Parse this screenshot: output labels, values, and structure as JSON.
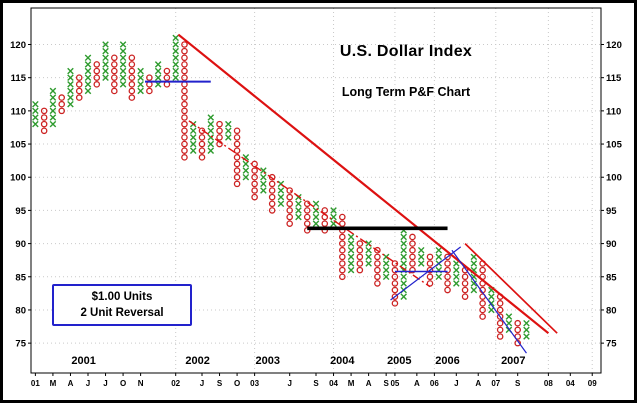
{
  "header": {
    "title": "U.S. Dollar Index",
    "subtitle": "Long Term P&F Chart"
  },
  "note": {
    "line1": "$1.00 Units",
    "line2": "2 Unit Reversal"
  },
  "chart_data": {
    "type": "point-and-figure",
    "title": "U.S. Dollar Index",
    "subtitle": "Long Term P&F Chart",
    "box_size": 1.0,
    "reversal": 2,
    "ylim": [
      70.5,
      125.5
    ],
    "yticks": [
      75,
      80,
      85,
      90,
      95,
      100,
      105,
      110,
      115,
      120
    ],
    "total_cols": 65,
    "grid": true,
    "colors": {
      "x_marker": "#2e9b2e",
      "o_marker": "#cc2222",
      "trend_red": "#dd1111",
      "trend_blue": "#2222cc",
      "resistance_black": "#000000",
      "grid": "#c9c9c9",
      "frame": "#000000"
    },
    "x_labels": [
      {
        "label": "01",
        "col": 0
      },
      {
        "label": "M",
        "col": 2
      },
      {
        "label": "A",
        "col": 4
      },
      {
        "label": "J",
        "col": 6
      },
      {
        "label": "J",
        "col": 8
      },
      {
        "label": "O",
        "col": 10
      },
      {
        "label": "N",
        "col": 12
      },
      {
        "label": "02",
        "col": 16
      },
      {
        "label": "J",
        "col": 19
      },
      {
        "label": "S",
        "col": 21
      },
      {
        "label": "O",
        "col": 23
      },
      {
        "label": "03",
        "col": 25
      },
      {
        "label": "J",
        "col": 29
      },
      {
        "label": "S",
        "col": 32
      },
      {
        "label": "04",
        "col": 34
      },
      {
        "label": "M",
        "col": 36
      },
      {
        "label": "A",
        "col": 38
      },
      {
        "label": "S",
        "col": 40
      },
      {
        "label": "05",
        "col": 41
      },
      {
        "label": "A",
        "col": 43.5
      },
      {
        "label": "06",
        "col": 45.5
      },
      {
        "label": "J",
        "col": 48
      },
      {
        "label": "A",
        "col": 50.5
      },
      {
        "label": "07",
        "col": 52.5
      },
      {
        "label": "S",
        "col": 55
      },
      {
        "label": "08",
        "col": 58.5
      },
      {
        "label": "04",
        "col": 61
      },
      {
        "label": "09",
        "col": 63.5
      }
    ],
    "year_grid_cols": [
      16,
      25,
      34,
      41,
      45.5,
      52.5,
      58.5,
      63.5
    ],
    "year_labels": [
      {
        "label": "2001",
        "col": 5.5
      },
      {
        "label": "2002",
        "col": 18.5
      },
      {
        "label": "2003",
        "col": 26.5
      },
      {
        "label": "2004",
        "col": 35
      },
      {
        "label": "2005",
        "col": 41.5
      },
      {
        "label": "2006",
        "col": 47
      },
      {
        "label": "2007",
        "col": 54.5
      }
    ],
    "columns": [
      {
        "t": "X",
        "lo": 108,
        "hi": 111
      },
      {
        "t": "O",
        "lo": 107,
        "hi": 110
      },
      {
        "t": "X",
        "lo": 108,
        "hi": 113
      },
      {
        "t": "O",
        "lo": 110,
        "hi": 112
      },
      {
        "t": "X",
        "lo": 111,
        "hi": 116
      },
      {
        "t": "O",
        "lo": 112,
        "hi": 115
      },
      {
        "t": "X",
        "lo": 113,
        "hi": 118
      },
      {
        "t": "O",
        "lo": 114,
        "hi": 117
      },
      {
        "t": "X",
        "lo": 115,
        "hi": 120
      },
      {
        "t": "O",
        "lo": 113,
        "hi": 118
      },
      {
        "t": "X",
        "lo": 114,
        "hi": 120
      },
      {
        "t": "O",
        "lo": 112,
        "hi": 118
      },
      {
        "t": "X",
        "lo": 113,
        "hi": 116
      },
      {
        "t": "O",
        "lo": 113,
        "hi": 115
      },
      {
        "t": "X",
        "lo": 114,
        "hi": 117
      },
      {
        "t": "O",
        "lo": 114,
        "hi": 116
      },
      {
        "t": "X",
        "lo": 115,
        "hi": 121
      },
      {
        "t": "O",
        "lo": 103,
        "hi": 120
      },
      {
        "t": "X",
        "lo": 104,
        "hi": 108
      },
      {
        "t": "O",
        "lo": 103,
        "hi": 107
      },
      {
        "t": "X",
        "lo": 104,
        "hi": 109
      },
      {
        "t": "O",
        "lo": 105,
        "hi": 108
      },
      {
        "t": "X",
        "lo": 106,
        "hi": 108
      },
      {
        "t": "O",
        "lo": 99,
        "hi": 107
      },
      {
        "t": "X",
        "lo": 100,
        "hi": 103
      },
      {
        "t": "O",
        "lo": 97,
        "hi": 102
      },
      {
        "t": "X",
        "lo": 98,
        "hi": 101
      },
      {
        "t": "O",
        "lo": 95,
        "hi": 100
      },
      {
        "t": "X",
        "lo": 96,
        "hi": 99
      },
      {
        "t": "O",
        "lo": 93,
        "hi": 98
      },
      {
        "t": "X",
        "lo": 94,
        "hi": 97
      },
      {
        "t": "O",
        "lo": 92,
        "hi": 96
      },
      {
        "t": "X",
        "lo": 93,
        "hi": 96
      },
      {
        "t": "O",
        "lo": 92,
        "hi": 95
      },
      {
        "t": "X",
        "lo": 93,
        "hi": 95
      },
      {
        "t": "O",
        "lo": 85,
        "hi": 94
      },
      {
        "t": "X",
        "lo": 86,
        "hi": 91
      },
      {
        "t": "O",
        "lo": 86,
        "hi": 90
      },
      {
        "t": "X",
        "lo": 87,
        "hi": 90
      },
      {
        "t": "O",
        "lo": 84,
        "hi": 89
      },
      {
        "t": "X",
        "lo": 85,
        "hi": 88
      },
      {
        "t": "O",
        "lo": 81,
        "hi": 87
      },
      {
        "t": "X",
        "lo": 82,
        "hi": 92
      },
      {
        "t": "O",
        "lo": 86,
        "hi": 91
      },
      {
        "t": "X",
        "lo": 87,
        "hi": 89
      },
      {
        "t": "O",
        "lo": 84,
        "hi": 88
      },
      {
        "t": "X",
        "lo": 85,
        "hi": 89
      },
      {
        "t": "O",
        "lo": 83,
        "hi": 88
      },
      {
        "t": "X",
        "lo": 84,
        "hi": 87
      },
      {
        "t": "O",
        "lo": 82,
        "hi": 86
      },
      {
        "t": "X",
        "lo": 83,
        "hi": 88
      },
      {
        "t": "O",
        "lo": 79,
        "hi": 87
      },
      {
        "t": "X",
        "lo": 80,
        "hi": 83
      },
      {
        "t": "O",
        "lo": 76,
        "hi": 82
      },
      {
        "t": "X",
        "lo": 77,
        "hi": 79
      },
      {
        "t": "O",
        "lo": 75,
        "hi": 78
      },
      {
        "t": "X",
        "lo": 76,
        "hi": 78
      }
    ],
    "lines": [
      {
        "name": "primary-downtrend",
        "x1": 16.3,
        "y1": 121.5,
        "x2": 58.5,
        "y2": 76.5,
        "color": "#dd1111",
        "width": 2.2,
        "style": "solid"
      },
      {
        "name": "secondary-downtrend-dashed",
        "x1": 17.5,
        "y1": 108.5,
        "x2": 45,
        "y2": 83.5,
        "color": "#dd1111",
        "width": 1.4,
        "style": "dash"
      },
      {
        "name": "right-downtrend",
        "x1": 49,
        "y1": 90,
        "x2": 59.5,
        "y2": 76.5,
        "color": "#dd1111",
        "width": 1.7,
        "style": "solid"
      },
      {
        "name": "resistance-92",
        "x1": 31,
        "y1": 92.3,
        "x2": 47,
        "y2": 92.3,
        "color": "#000000",
        "width": 3.6,
        "style": "solid"
      },
      {
        "name": "blue-support-114",
        "x1": 12.5,
        "y1": 114.4,
        "x2": 20,
        "y2": 114.4,
        "color": "#2222cc",
        "width": 2.0,
        "style": "solid"
      },
      {
        "name": "blue-support-86",
        "x1": 41,
        "y1": 85.8,
        "x2": 47,
        "y2": 85.8,
        "color": "#2222cc",
        "width": 1.5,
        "style": "solid"
      },
      {
        "name": "blue-uptrend",
        "x1": 40.5,
        "y1": 81.5,
        "x2": 48.5,
        "y2": 89.5,
        "color": "#2222cc",
        "width": 1.2,
        "style": "solid"
      },
      {
        "name": "blue-downtrend",
        "x1": 47.5,
        "y1": 89,
        "x2": 56,
        "y2": 73.5,
        "color": "#2222cc",
        "width": 1.2,
        "style": "solid"
      }
    ]
  }
}
